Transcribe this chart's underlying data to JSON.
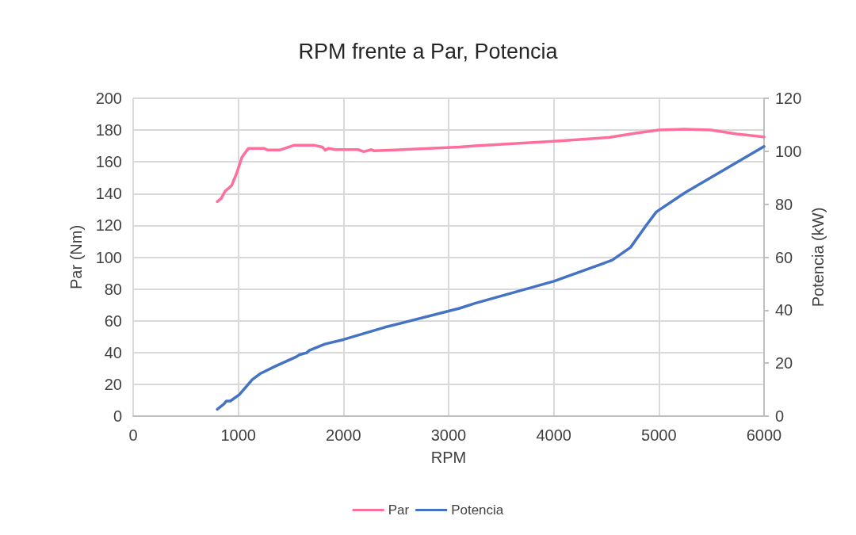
{
  "chart_data": {
    "type": "line",
    "title": "RPM frente a Par, Potencia",
    "xlabel": "RPM",
    "ylabel": "Par (Nm)",
    "y2label": "Potencia (kW)",
    "xlim": [
      0,
      6000
    ],
    "xticks": [
      0,
      1000,
      2000,
      3000,
      4000,
      5000,
      6000
    ],
    "ylim": [
      0,
      200
    ],
    "yticks": [
      0,
      20,
      40,
      60,
      80,
      100,
      120,
      140,
      160,
      180,
      200
    ],
    "y2lim": [
      0,
      120
    ],
    "y2ticks": [
      0,
      20,
      40,
      60,
      80,
      100,
      120
    ],
    "grid": true,
    "legend": "bottom",
    "marker": "none",
    "line_style": "solid",
    "series": [
      {
        "name": "Par",
        "color": "#ff6f9c",
        "x": [
          800,
          837,
          875,
          936,
          985,
          1035,
          1096,
          1244,
          1281,
          1392,
          1528,
          1724,
          1798,
          1828,
          1860,
          1922,
          2143,
          2192,
          2266,
          2291,
          3103,
          3252,
          4000,
          4533,
          4779,
          5000,
          5246,
          5493,
          5739,
          6000
        ],
        "values": [
          135,
          137,
          141.6,
          145,
          153,
          163,
          168.5,
          168.5,
          167.4,
          167.4,
          170.4,
          170.4,
          169.3,
          167.4,
          168.5,
          167.7,
          167.7,
          166.4,
          167.7,
          166.9,
          169.3,
          170.1,
          173,
          175.4,
          178.1,
          180,
          180.5,
          180,
          177.6,
          175.7
        ]
      },
      {
        "name": "Potencia",
        "color": "#4472c4",
        "axis": "y2",
        "x": [
          800,
          862,
          887,
          924,
          1010,
          1133,
          1207,
          1355,
          1552,
          1577,
          1650,
          1675,
          1823,
          2000,
          2389,
          3103,
          3252,
          4000,
          4557,
          4730,
          4877,
          4975,
          5246,
          6000
        ],
        "values": [
          2.6,
          4.5,
          5.7,
          5.7,
          8.1,
          13.8,
          16,
          18.9,
          22.4,
          23.1,
          23.9,
          24.8,
          27.2,
          28.9,
          33.5,
          40.7,
          42.6,
          50.9,
          58.9,
          63.7,
          71.9,
          77.1,
          84.3,
          101.8
        ]
      }
    ]
  }
}
